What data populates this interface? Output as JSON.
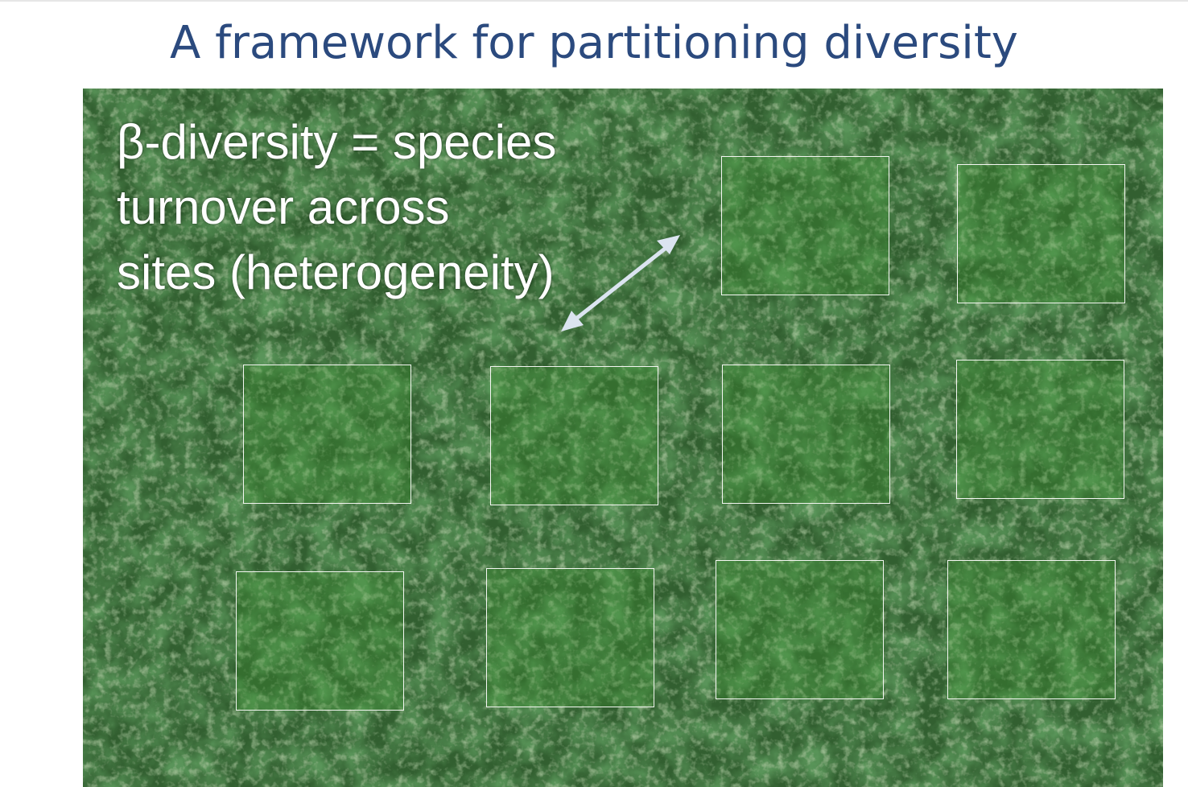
{
  "slide": {
    "title": "A framework for partitioning diversity"
  },
  "photo": {
    "subject": "aerial view of rainforest canopy",
    "caption_lines": [
      "β-diversity = species",
      "turnover across",
      "sites (heterogeneity)"
    ],
    "plot_count": 10,
    "plot_fill_color": "#3c962d",
    "plot_border_color": "#f4f7f2",
    "arrow": "double-headed-arrow",
    "arrow_color": "#dbe4f0"
  },
  "colors": {
    "title": "#2b4a7e",
    "caption": "#ffffff"
  }
}
